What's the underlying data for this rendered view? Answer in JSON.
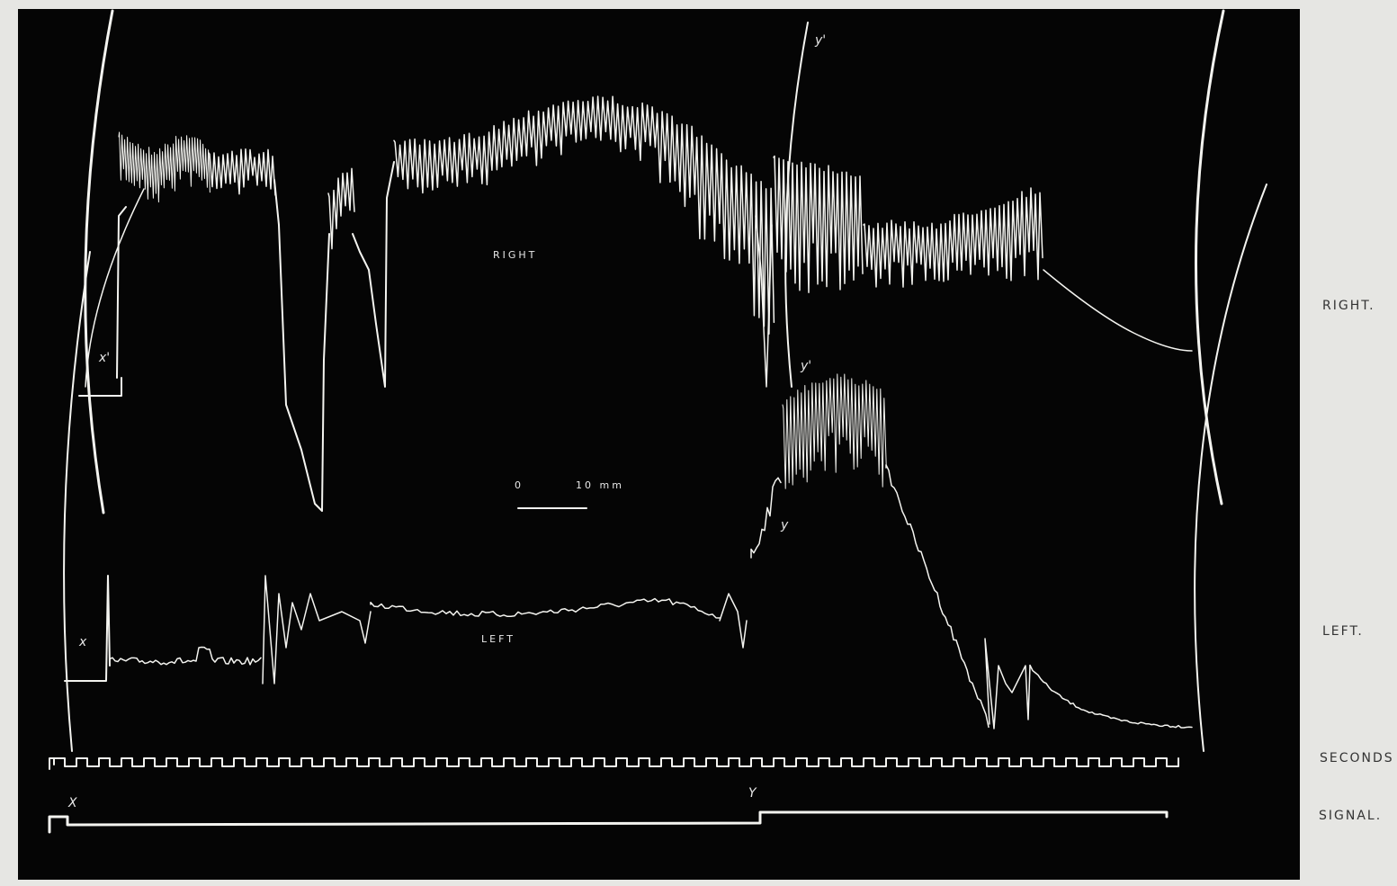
{
  "traces": {
    "right": "RIGHT",
    "left": "LEFT"
  },
  "scale_bar": {
    "start": "0",
    "end": "10 mm"
  },
  "markers": [
    "x'",
    "x",
    "y'",
    "y'",
    "y",
    "X",
    "Y"
  ],
  "row_labels": [
    "RIGHT.",
    "LEFT.",
    "SECONDS",
    "SIGNAL."
  ]
}
